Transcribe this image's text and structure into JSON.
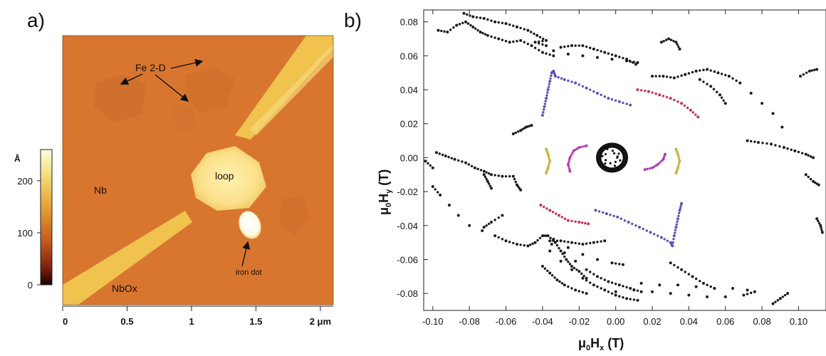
{
  "panel_a": {
    "letter": "a)",
    "annotations": {
      "fe": "Fe 2-D",
      "loop": "loop",
      "nb": "Nb",
      "nbox": "NbOx",
      "iron_dot": "iron dot"
    },
    "colorbar": {
      "unit": "Å",
      "ticks": [
        "200",
        "100",
        "0"
      ],
      "tick_values": [
        200,
        100,
        0
      ],
      "range": [
        0,
        260
      ],
      "colors": [
        "#fffde0",
        "#f3e27a",
        "#e39a32",
        "#c3591e",
        "#7a1f0c",
        "#1a0000"
      ]
    },
    "x_ticks": [
      "0",
      "0.5",
      "1",
      "1.5",
      "2 μm"
    ],
    "x_tick_values": [
      0,
      0.5,
      1,
      1.5,
      2
    ],
    "x_range": [
      0,
      2.1
    ],
    "colors": {
      "background": "#d8762f",
      "pad": "#fbe08a",
      "lead": "#f0c24e"
    }
  },
  "chart_data": {
    "type": "scatter",
    "panel_letter": "b)",
    "xlabel": {
      "prefix": "μ",
      "sub0": "0",
      "main": "H",
      "sub": "x",
      "suffix": " (T)"
    },
    "ylabel": {
      "prefix": "μ",
      "sub0": "0",
      "main": "H",
      "sub": "y",
      "suffix": " (T)"
    },
    "xlim": [
      -0.105,
      0.115
    ],
    "ylim": [
      -0.09,
      0.087
    ],
    "x_ticks": [
      "-0.10",
      "-0.08",
      "-0.06",
      "-0.04",
      "-0.02",
      "0.00",
      "0.02",
      "0.04",
      "0.06",
      "0.08",
      "0.10"
    ],
    "x_tick_values": [
      -0.1,
      -0.08,
      -0.06,
      -0.04,
      -0.02,
      0.0,
      0.02,
      0.04,
      0.06,
      0.08,
      0.1
    ],
    "y_ticks": [
      "0.08",
      "0.06",
      "0.04",
      "0.02",
      "0.00",
      "-0.02",
      "-0.04",
      "-0.06",
      "-0.08"
    ],
    "y_tick_values": [
      0.08,
      0.06,
      0.04,
      0.02,
      0.0,
      -0.02,
      -0.04,
      -0.06,
      -0.08
    ],
    "series": [
      {
        "color": "#1a1a1a",
        "values": [
          [
            -0.097,
            0.075
          ],
          [
            -0.092,
            0.074
          ],
          [
            -0.087,
            0.078
          ],
          [
            -0.082,
            0.08
          ],
          [
            -0.078,
            0.077
          ],
          [
            -0.074,
            0.074
          ],
          [
            -0.07,
            0.072
          ],
          [
            -0.064,
            0.07
          ],
          [
            -0.058,
            0.068
          ],
          [
            -0.052,
            0.069
          ],
          [
            -0.046,
            0.066
          ],
          [
            -0.04,
            0.062
          ],
          [
            -0.034,
            0.06
          ],
          [
            -0.083,
            0.085
          ],
          [
            -0.078,
            0.083
          ],
          [
            -0.072,
            0.082
          ],
          [
            -0.066,
            0.08
          ],
          [
            -0.06,
            0.079
          ],
          [
            -0.054,
            0.077
          ],
          [
            -0.048,
            0.075
          ],
          [
            -0.043,
            0.072
          ],
          [
            -0.038,
            0.069
          ],
          [
            -0.044,
            0.068
          ],
          [
            -0.038,
            0.066
          ],
          [
            -0.03,
            0.065
          ],
          [
            -0.024,
            0.066
          ],
          [
            -0.018,
            0.066
          ],
          [
            -0.012,
            0.064
          ],
          [
            -0.006,
            0.062
          ],
          [
            0.0,
            0.06
          ],
          [
            0.006,
            0.058
          ],
          [
            0.011,
            0.055
          ],
          [
            -0.034,
            0.063
          ],
          [
            -0.026,
            0.061
          ],
          [
            -0.018,
            0.06
          ],
          [
            -0.01,
            0.059
          ],
          [
            -0.002,
            0.058
          ],
          [
            0.006,
            0.057
          ],
          [
            0.012,
            0.056
          ],
          [
            0.02,
            0.048
          ],
          [
            0.026,
            0.048
          ],
          [
            0.032,
            0.047
          ],
          [
            0.038,
            0.049
          ],
          [
            0.044,
            0.051
          ],
          [
            0.05,
            0.052
          ],
          [
            0.056,
            0.05
          ],
          [
            0.062,
            0.048
          ],
          [
            0.068,
            0.044
          ],
          [
            0.074,
            0.038
          ],
          [
            0.08,
            0.032
          ],
          [
            0.086,
            0.026
          ],
          [
            0.091,
            0.018
          ],
          [
            0.038,
            0.049
          ],
          [
            0.046,
            0.046
          ],
          [
            0.052,
            0.042
          ],
          [
            0.057,
            0.037
          ],
          [
            0.06,
            0.032
          ],
          [
            0.025,
            0.068
          ],
          [
            0.029,
            0.07
          ],
          [
            0.033,
            0.068
          ],
          [
            0.035,
            0.064
          ],
          [
            -0.056,
            0.014
          ],
          [
            -0.052,
            0.016
          ],
          [
            -0.049,
            0.018
          ],
          [
            -0.046,
            0.019
          ],
          [
            0.072,
            0.01
          ],
          [
            0.078,
            0.009
          ],
          [
            0.085,
            0.008
          ],
          [
            0.092,
            0.006
          ],
          [
            0.098,
            0.004
          ],
          [
            0.104,
            0.002
          ],
          [
            0.108,
            0.0
          ],
          [
            0.101,
            0.048
          ],
          [
            0.106,
            0.051
          ],
          [
            0.11,
            0.052
          ],
          [
            -0.104,
            -0.002
          ],
          [
            -0.1,
            -0.006
          ],
          [
            -0.098,
            0.003
          ],
          [
            -0.093,
            0.001
          ],
          [
            -0.088,
            -0.001
          ],
          [
            -0.082,
            -0.003
          ],
          [
            -0.077,
            -0.006
          ],
          [
            -0.072,
            -0.008
          ],
          [
            -0.068,
            -0.01
          ],
          [
            -0.062,
            -0.011
          ],
          [
            -0.056,
            -0.011
          ],
          [
            -0.054,
            -0.016
          ],
          [
            -0.052,
            -0.019
          ],
          [
            -0.1,
            -0.017
          ],
          [
            -0.096,
            -0.022
          ],
          [
            -0.091,
            -0.028
          ],
          [
            -0.086,
            -0.034
          ],
          [
            -0.08,
            -0.04
          ],
          [
            -0.073,
            -0.043
          ],
          [
            -0.066,
            -0.046
          ],
          [
            -0.06,
            -0.049
          ],
          [
            -0.054,
            -0.051
          ],
          [
            -0.048,
            -0.052
          ],
          [
            -0.044,
            -0.05
          ],
          [
            -0.04,
            -0.046
          ],
          [
            -0.037,
            -0.046
          ],
          [
            -0.033,
            -0.05
          ],
          [
            -0.03,
            -0.055
          ],
          [
            -0.027,
            -0.06
          ],
          [
            -0.024,
            -0.064
          ],
          [
            -0.02,
            -0.067
          ],
          [
            -0.016,
            -0.071
          ],
          [
            -0.036,
            -0.049
          ],
          [
            -0.03,
            -0.049
          ],
          [
            -0.024,
            -0.05
          ],
          [
            -0.018,
            -0.051
          ],
          [
            -0.012,
            -0.05
          ],
          [
            -0.006,
            -0.049
          ],
          [
            -0.035,
            -0.051
          ],
          [
            -0.028,
            -0.056
          ],
          [
            -0.022,
            -0.061
          ],
          [
            -0.016,
            -0.066
          ],
          [
            -0.01,
            -0.07
          ],
          [
            -0.004,
            -0.073
          ],
          [
            0.002,
            -0.075
          ],
          [
            0.008,
            -0.077
          ],
          [
            0.014,
            -0.079
          ],
          [
            -0.036,
            -0.055
          ],
          [
            -0.03,
            -0.061
          ],
          [
            -0.024,
            -0.066
          ],
          [
            -0.018,
            -0.071
          ],
          [
            -0.012,
            -0.075
          ],
          [
            -0.006,
            -0.078
          ],
          [
            0.0,
            -0.081
          ],
          [
            0.006,
            -0.083
          ],
          [
            0.012,
            -0.084
          ],
          [
            -0.034,
            -0.048
          ],
          [
            -0.026,
            -0.053
          ],
          [
            -0.018,
            -0.057
          ],
          [
            -0.01,
            -0.06
          ],
          [
            -0.002,
            -0.062
          ],
          [
            0.004,
            -0.063
          ],
          [
            -0.04,
            -0.064
          ],
          [
            -0.036,
            -0.068
          ],
          [
            -0.032,
            -0.072
          ],
          [
            -0.028,
            -0.075
          ],
          [
            -0.022,
            -0.078
          ],
          [
            -0.016,
            -0.08
          ],
          [
            0.0,
            -0.079
          ],
          [
            0.01,
            -0.078
          ],
          [
            0.02,
            -0.079
          ],
          [
            0.03,
            -0.08
          ],
          [
            0.04,
            -0.081
          ],
          [
            0.05,
            -0.082
          ],
          [
            0.06,
            -0.082
          ],
          [
            0.07,
            -0.081
          ],
          [
            0.076,
            -0.079
          ],
          [
            0.014,
            -0.074
          ],
          [
            0.024,
            -0.075
          ],
          [
            0.034,
            -0.075
          ],
          [
            0.044,
            -0.076
          ],
          [
            0.054,
            -0.077
          ],
          [
            0.064,
            -0.077
          ],
          [
            0.072,
            -0.078
          ],
          [
            0.03,
            -0.062
          ],
          [
            0.036,
            -0.066
          ],
          [
            0.042,
            -0.07
          ],
          [
            0.048,
            -0.074
          ],
          [
            0.054,
            -0.077
          ],
          [
            -0.062,
            -0.034
          ],
          [
            -0.068,
            -0.038
          ],
          [
            -0.072,
            -0.041
          ],
          [
            -0.072,
            -0.01
          ],
          [
            -0.07,
            -0.014
          ],
          [
            -0.068,
            -0.018
          ],
          [
            0.086,
            -0.086
          ],
          [
            0.09,
            -0.083
          ],
          [
            0.094,
            -0.08
          ],
          [
            0.104,
            -0.01
          ],
          [
            0.108,
            -0.014
          ],
          [
            0.111,
            -0.016
          ],
          [
            0.11,
            -0.036
          ],
          [
            0.112,
            -0.04
          ],
          [
            0.113,
            -0.044
          ]
        ]
      },
      {
        "color": "#5a52b8",
        "values": [
          [
            -0.04,
            0.025
          ],
          [
            -0.039,
            0.03
          ],
          [
            -0.038,
            0.035
          ],
          [
            -0.037,
            0.04
          ],
          [
            -0.036,
            0.045
          ],
          [
            -0.035,
            0.05
          ],
          [
            -0.034,
            0.051
          ],
          [
            -0.033,
            0.048
          ],
          [
            -0.028,
            0.046
          ],
          [
            -0.022,
            0.044
          ],
          [
            -0.016,
            0.041
          ],
          [
            -0.01,
            0.038
          ],
          [
            -0.004,
            0.035
          ],
          [
            0.002,
            0.033
          ],
          [
            0.008,
            0.031
          ],
          [
            -0.011,
            -0.031
          ],
          [
            -0.005,
            -0.033
          ],
          [
            0.001,
            -0.035
          ],
          [
            0.007,
            -0.038
          ],
          [
            0.013,
            -0.041
          ],
          [
            0.019,
            -0.044
          ],
          [
            0.025,
            -0.047
          ],
          [
            0.03,
            -0.05
          ],
          [
            0.031,
            -0.052
          ],
          [
            0.032,
            -0.046
          ],
          [
            0.033,
            -0.041
          ],
          [
            0.034,
            -0.036
          ],
          [
            0.035,
            -0.031
          ],
          [
            0.036,
            -0.027
          ]
        ]
      },
      {
        "color": "#c8325a",
        "values": [
          [
            0.012,
            0.04
          ],
          [
            0.018,
            0.039
          ],
          [
            0.024,
            0.037
          ],
          [
            0.03,
            0.035
          ],
          [
            0.036,
            0.032
          ],
          [
            0.041,
            0.028
          ],
          [
            0.045,
            0.024
          ],
          [
            -0.041,
            -0.028
          ],
          [
            -0.036,
            -0.031
          ],
          [
            -0.031,
            -0.034
          ],
          [
            -0.026,
            -0.037
          ],
          [
            -0.02,
            -0.038
          ],
          [
            -0.015,
            -0.039
          ]
        ]
      },
      {
        "color": "#b040b0",
        "values": [
          [
            -0.025,
            -0.008
          ],
          [
            -0.026,
            -0.004
          ],
          [
            -0.025,
            0.0
          ],
          [
            -0.023,
            0.004
          ],
          [
            -0.02,
            0.006
          ],
          [
            -0.016,
            0.007
          ],
          [
            0.016,
            -0.007
          ],
          [
            0.02,
            -0.006
          ],
          [
            0.023,
            -0.004
          ],
          [
            0.026,
            -0.001
          ],
          [
            0.027,
            0.002
          ]
        ]
      },
      {
        "color": "#c8b43a",
        "values": [
          [
            -0.038,
            0.005
          ],
          [
            -0.037,
            0.002
          ],
          [
            -0.036,
            -0.002
          ],
          [
            -0.037,
            -0.006
          ],
          [
            -0.038,
            -0.009
          ],
          [
            0.033,
            0.005
          ],
          [
            0.034,
            0.002
          ],
          [
            0.035,
            -0.002
          ],
          [
            0.034,
            -0.006
          ],
          [
            0.033,
            -0.009
          ]
        ]
      }
    ],
    "ring": {
      "cx": -0.002,
      "cy": 0.0,
      "r": 0.008,
      "color": "#111111"
    }
  }
}
